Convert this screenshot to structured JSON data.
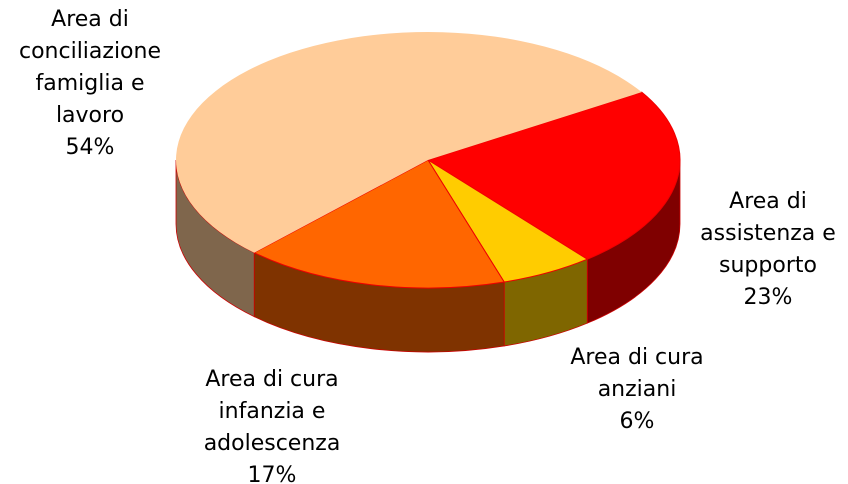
{
  "chart_data": {
    "type": "pie3d",
    "categories": [
      "Area di\nassistenza e\nsupporto",
      "Area di cura\nanziani",
      "Area di cura\ninfanzia e\nadolescenza",
      "Area di\nconciliazione\nfamiglia e\nlavoro"
    ],
    "values": [
      23,
      6,
      17,
      54
    ],
    "value_labels": [
      "23%",
      "6%",
      "17%",
      "54%"
    ],
    "colors": [
      "#ff0000",
      "#ffcc00",
      "#ff6600",
      "#ffcc99"
    ]
  }
}
